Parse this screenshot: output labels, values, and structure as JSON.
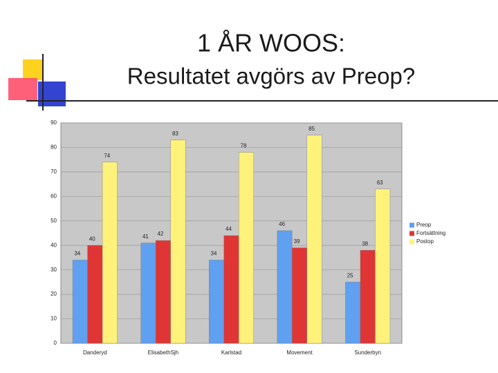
{
  "slide": {
    "title_line1": "1 ÅR WOOS:",
    "title_line2": "Resultatet avgörs av Preop?"
  },
  "chart_data": {
    "type": "bar",
    "categories": [
      "Danderyd",
      "ElisabethSjh",
      "Karlstad",
      "Movement",
      "Sunderbyn"
    ],
    "series": [
      {
        "name": "Preop",
        "color": "#5fa0f0",
        "values": [
          34,
          41,
          34,
          46,
          25
        ]
      },
      {
        "name": "Fortsättning",
        "color": "#e03535",
        "values": [
          40,
          42,
          44,
          39,
          38
        ]
      },
      {
        "name": "Postop",
        "color": "#fff27a",
        "values": [
          74,
          83,
          78,
          85,
          63
        ]
      }
    ],
    "ylim": [
      0,
      90
    ],
    "yticks": [
      0,
      10,
      20,
      30,
      40,
      50,
      60,
      70,
      80,
      90
    ],
    "grid": true,
    "legend": "right"
  }
}
